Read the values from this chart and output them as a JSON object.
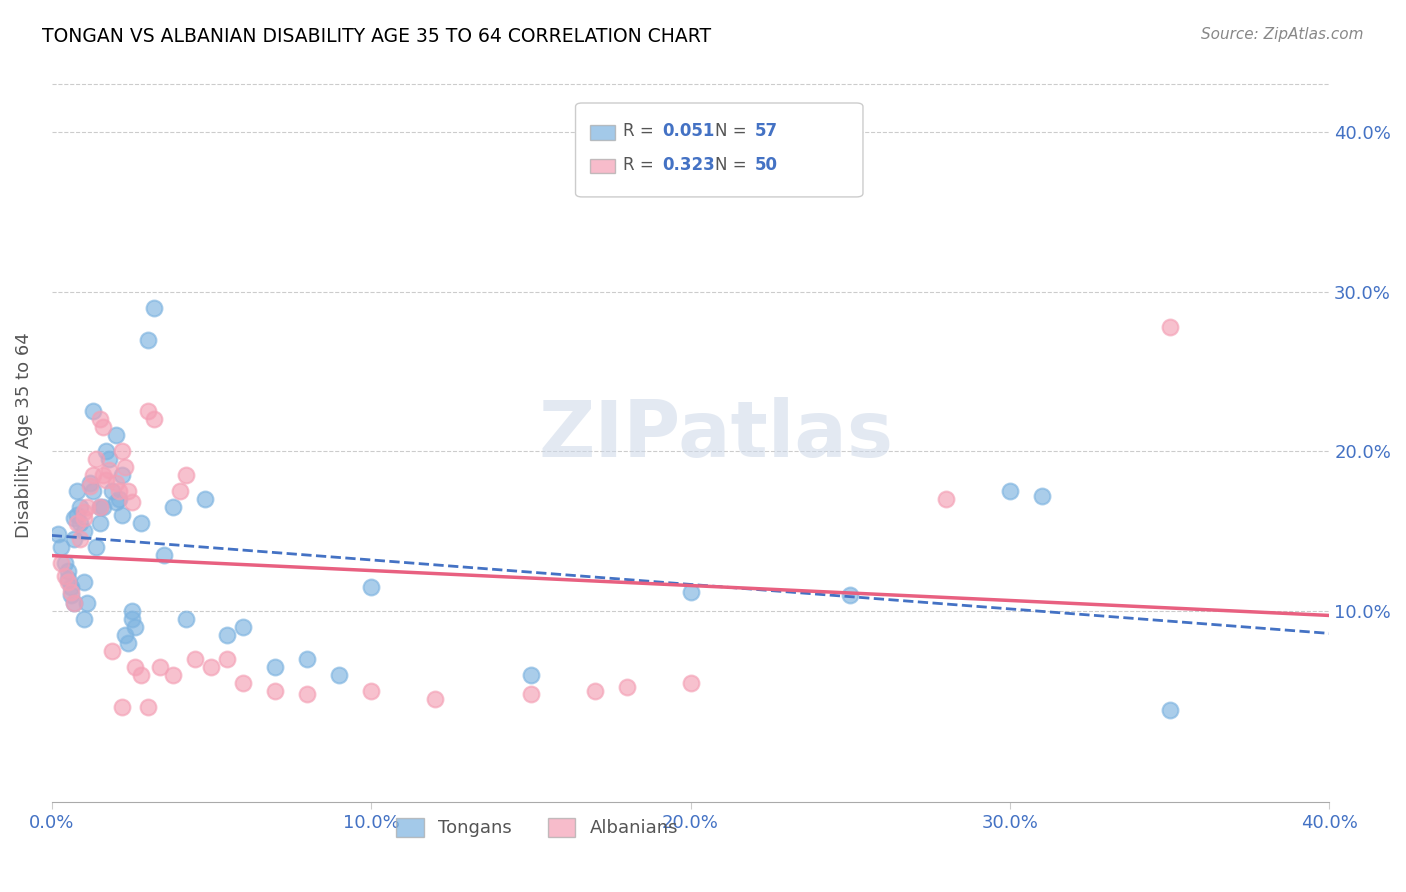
{
  "title": "TONGAN VS ALBANIAN DISABILITY AGE 35 TO 64 CORRELATION CHART",
  "source": "Source: ZipAtlas.com",
  "ylabel": "Disability Age 35 to 64",
  "xlim": [
    0.0,
    0.4
  ],
  "ylim": [
    -0.02,
    0.44
  ],
  "ytick_right_labels": [
    "10.0%",
    "20.0%",
    "30.0%",
    "40.0%"
  ],
  "ytick_right_values": [
    0.1,
    0.2,
    0.3,
    0.4
  ],
  "xtick_labels": [
    "0.0%",
    "10.0%",
    "20.0%",
    "30.0%",
    "40.0%"
  ],
  "xtick_values": [
    0.0,
    0.1,
    0.2,
    0.3,
    0.4
  ],
  "tongan_color": "#7db3e0",
  "albanian_color": "#f4a0b5",
  "tongan_line_color": "#4472c4",
  "albanian_line_color": "#e86080",
  "watermark": "ZIPatlas",
  "tongan_R": "0.051",
  "tongan_N": "57",
  "albanian_R": "0.323",
  "albanian_N": "50",
  "tongan_x": [
    0.002,
    0.003,
    0.004,
    0.005,
    0.005,
    0.006,
    0.006,
    0.007,
    0.007,
    0.007,
    0.008,
    0.008,
    0.009,
    0.009,
    0.01,
    0.01,
    0.01,
    0.011,
    0.012,
    0.013,
    0.014,
    0.015,
    0.015,
    0.016,
    0.017,
    0.018,
    0.019,
    0.02,
    0.021,
    0.022,
    0.023,
    0.024,
    0.025,
    0.026,
    0.028,
    0.03,
    0.032,
    0.035,
    0.038,
    0.042,
    0.048,
    0.055,
    0.06,
    0.07,
    0.08,
    0.09,
    0.1,
    0.15,
    0.2,
    0.25,
    0.3,
    0.31,
    0.35,
    0.013,
    0.02,
    0.022,
    0.025
  ],
  "tongan_y": [
    0.148,
    0.14,
    0.13,
    0.125,
    0.12,
    0.115,
    0.11,
    0.105,
    0.145,
    0.158,
    0.16,
    0.175,
    0.165,
    0.155,
    0.15,
    0.118,
    0.095,
    0.105,
    0.18,
    0.175,
    0.14,
    0.165,
    0.155,
    0.165,
    0.2,
    0.195,
    0.175,
    0.21,
    0.17,
    0.185,
    0.085,
    0.08,
    0.095,
    0.09,
    0.155,
    0.27,
    0.29,
    0.135,
    0.165,
    0.095,
    0.17,
    0.085,
    0.09,
    0.065,
    0.07,
    0.06,
    0.115,
    0.06,
    0.112,
    0.11,
    0.175,
    0.172,
    0.038,
    0.225,
    0.168,
    0.16,
    0.1
  ],
  "albanian_x": [
    0.003,
    0.004,
    0.005,
    0.006,
    0.007,
    0.008,
    0.009,
    0.01,
    0.01,
    0.011,
    0.012,
    0.013,
    0.014,
    0.015,
    0.016,
    0.017,
    0.018,
    0.019,
    0.02,
    0.021,
    0.022,
    0.023,
    0.024,
    0.025,
    0.026,
    0.028,
    0.03,
    0.032,
    0.034,
    0.038,
    0.04,
    0.042,
    0.045,
    0.05,
    0.055,
    0.06,
    0.07,
    0.08,
    0.1,
    0.12,
    0.15,
    0.17,
    0.18,
    0.2,
    0.28,
    0.35,
    0.015,
    0.016,
    0.022,
    0.03
  ],
  "albanian_y": [
    0.13,
    0.122,
    0.118,
    0.112,
    0.105,
    0.155,
    0.145,
    0.162,
    0.158,
    0.165,
    0.178,
    0.185,
    0.195,
    0.165,
    0.185,
    0.182,
    0.188,
    0.075,
    0.18,
    0.175,
    0.2,
    0.19,
    0.175,
    0.168,
    0.065,
    0.06,
    0.225,
    0.22,
    0.065,
    0.06,
    0.175,
    0.185,
    0.07,
    0.065,
    0.07,
    0.055,
    0.05,
    0.048,
    0.05,
    0.045,
    0.048,
    0.05,
    0.052,
    0.055,
    0.17,
    0.278,
    0.22,
    0.215,
    0.04,
    0.04
  ]
}
